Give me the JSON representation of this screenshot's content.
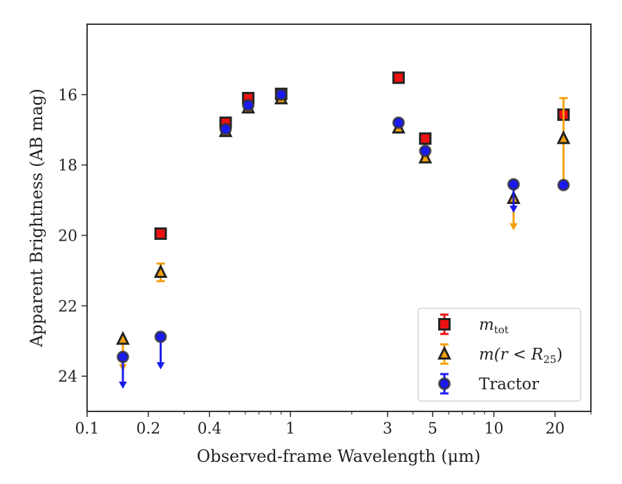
{
  "chart_data": {
    "type": "scatter",
    "title": "",
    "xlabel": "Observed-frame Wavelength (μm)",
    "ylabel": "Apparent Brightness (AB mag)",
    "x_scale": "log",
    "xlim": [
      0.1,
      30
    ],
    "ylim": [
      25,
      14
    ],
    "y_inverted": true,
    "x_ticks": [
      0.1,
      0.2,
      0.4,
      1,
      3,
      5,
      10,
      20
    ],
    "x_tick_labels": [
      "0.1",
      "0.2",
      "0.4",
      "1",
      "3",
      "5",
      "10",
      "20"
    ],
    "y_ticks": [
      16,
      18,
      20,
      22,
      24
    ],
    "y_tick_labels": [
      "16",
      "18",
      "20",
      "22",
      "24"
    ],
    "grid": false,
    "legend_position": "lower-right",
    "series": [
      {
        "name": "m_tot",
        "legend_main": "m",
        "legend_sub": "tot",
        "marker": "square",
        "color": "#ee1111",
        "edge_color": "#222222",
        "points": [
          {
            "x": 0.23,
            "y": 19.95,
            "err": 0.08
          },
          {
            "x": 0.48,
            "y": 16.8,
            "err": 0.05
          },
          {
            "x": 0.62,
            "y": 16.1,
            "err": 0.05
          },
          {
            "x": 0.9,
            "y": 15.98,
            "err": 0.05
          },
          {
            "x": 3.4,
            "y": 15.52,
            "err": 0.05
          },
          {
            "x": 4.6,
            "y": 17.25,
            "err": 0.05
          },
          {
            "x": 22,
            "y": 16.57,
            "err": 0.08
          }
        ]
      },
      {
        "name": "m(r < R25)",
        "legend_text": "m(r < R",
        "legend_sub": "25",
        "legend_close": ")",
        "marker": "triangle",
        "color": "#f5a10a",
        "edge_color": "#222222",
        "points": [
          {
            "x": 0.15,
            "y": 22.95,
            "upper_limit": true,
            "arrow_to": 23.8
          },
          {
            "x": 0.23,
            "y": 21.05,
            "err": 0.25
          },
          {
            "x": 0.48,
            "y": 17.05,
            "err": 0.05
          },
          {
            "x": 0.62,
            "y": 16.38,
            "err": 0.05
          },
          {
            "x": 0.9,
            "y": 16.12,
            "err": 0.05
          },
          {
            "x": 3.4,
            "y": 16.95,
            "err": 0.05
          },
          {
            "x": 4.6,
            "y": 17.8,
            "err": 0.05
          },
          {
            "x": 12.5,
            "y": 18.95,
            "upper_limit": true,
            "arrow_to": 19.8
          },
          {
            "x": 22,
            "y": 17.25,
            "err_low": 18.5,
            "err_high": 16.1
          }
        ]
      },
      {
        "name": "Tractor",
        "marker": "circle",
        "color": "#1a1aee",
        "edge_color": "#333333",
        "points": [
          {
            "x": 0.15,
            "y": 23.45,
            "upper_limit": true,
            "arrow_to": 24.3
          },
          {
            "x": 0.23,
            "y": 22.88,
            "upper_limit": true,
            "arrow_to": 23.75
          },
          {
            "x": 0.48,
            "y": 16.98,
            "err": 0.05
          },
          {
            "x": 0.62,
            "y": 16.3,
            "err": 0.05
          },
          {
            "x": 0.9,
            "y": 16.0,
            "err": 0.05
          },
          {
            "x": 3.4,
            "y": 16.8,
            "err": 0.05
          },
          {
            "x": 4.6,
            "y": 17.6,
            "err": 0.05
          },
          {
            "x": 12.5,
            "y": 18.55,
            "upper_limit": true,
            "arrow_to": 19.3
          },
          {
            "x": 22,
            "y": 18.57,
            "err": 0.05
          }
        ]
      }
    ]
  }
}
